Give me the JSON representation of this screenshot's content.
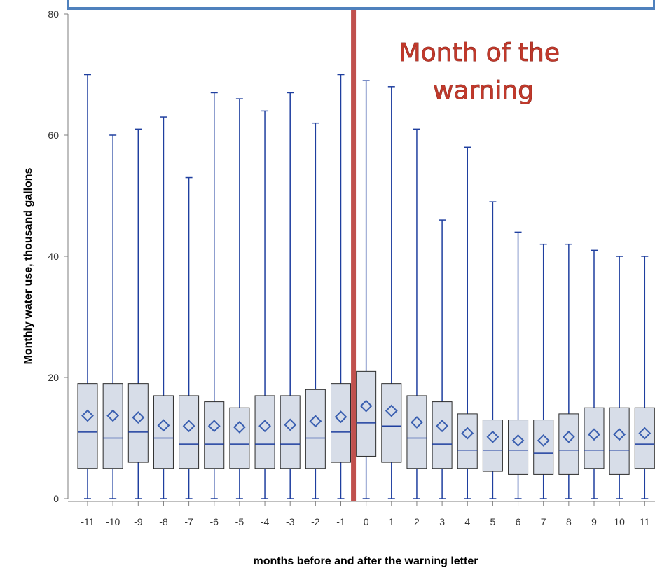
{
  "chart_data": {
    "type": "box",
    "title": "",
    "xlabel": "months before and after the warning letter",
    "ylabel": "Monthly water use, thousand gallons",
    "ylim": [
      0,
      80
    ],
    "yticks": [
      0,
      20,
      40,
      60,
      80
    ],
    "grid": false,
    "categories": [
      "-11",
      "-10",
      "-9",
      "-8",
      "-7",
      "-6",
      "-5",
      "-4",
      "-3",
      "-2",
      "-1",
      "0",
      "1",
      "2",
      "3",
      "4",
      "5",
      "6",
      "7",
      "8",
      "9",
      "10",
      "11"
    ],
    "boxes": [
      {
        "min": 0,
        "q1": 5,
        "median": 11,
        "q3": 19,
        "max": 70,
        "mean": 13.7
      },
      {
        "min": 0,
        "q1": 5,
        "median": 10,
        "q3": 19,
        "max": 60,
        "mean": 13.7
      },
      {
        "min": 0,
        "q1": 6,
        "median": 11,
        "q3": 19,
        "max": 61,
        "mean": 13.4
      },
      {
        "min": 0,
        "q1": 5,
        "median": 10,
        "q3": 17,
        "max": 63,
        "mean": 12.1
      },
      {
        "min": 0,
        "q1": 5,
        "median": 9,
        "q3": 17,
        "max": 53,
        "mean": 12.0
      },
      {
        "min": 0,
        "q1": 5,
        "median": 9,
        "q3": 16,
        "max": 67,
        "mean": 12.0
      },
      {
        "min": 0,
        "q1": 5,
        "median": 9,
        "q3": 15,
        "max": 66,
        "mean": 11.8
      },
      {
        "min": 0,
        "q1": 5,
        "median": 9,
        "q3": 17,
        "max": 64,
        "mean": 12.0
      },
      {
        "min": 0,
        "q1": 5,
        "median": 9,
        "q3": 17,
        "max": 67,
        "mean": 12.2
      },
      {
        "min": 0,
        "q1": 5,
        "median": 10,
        "q3": 18,
        "max": 62,
        "mean": 12.8
      },
      {
        "min": 0,
        "q1": 6,
        "median": 11,
        "q3": 19,
        "max": 70,
        "mean": 13.5
      },
      {
        "min": 0,
        "q1": 7,
        "median": 12.5,
        "q3": 21,
        "max": 69,
        "mean": 15.3
      },
      {
        "min": 0,
        "q1": 6,
        "median": 12,
        "q3": 19,
        "max": 68,
        "mean": 14.5
      },
      {
        "min": 0,
        "q1": 5,
        "median": 10,
        "q3": 17,
        "max": 61,
        "mean": 12.6
      },
      {
        "min": 0,
        "q1": 5,
        "median": 9,
        "q3": 16,
        "max": 46,
        "mean": 12.0
      },
      {
        "min": 0,
        "q1": 5,
        "median": 8,
        "q3": 14,
        "max": 58,
        "mean": 10.8
      },
      {
        "min": 0,
        "q1": 4.5,
        "median": 8,
        "q3": 13,
        "max": 49,
        "mean": 10.2
      },
      {
        "min": 0,
        "q1": 4,
        "median": 8,
        "q3": 13,
        "max": 44,
        "mean": 9.6
      },
      {
        "min": 0,
        "q1": 4,
        "median": 7.5,
        "q3": 13,
        "max": 42,
        "mean": 9.6
      },
      {
        "min": 0,
        "q1": 4,
        "median": 8,
        "q3": 14,
        "max": 42,
        "mean": 10.2
      },
      {
        "min": 0,
        "q1": 5,
        "median": 8,
        "q3": 15,
        "max": 41,
        "mean": 10.6
      },
      {
        "min": 0,
        "q1": 4,
        "median": 8,
        "q3": 15,
        "max": 40,
        "mean": 10.6
      },
      {
        "min": 0,
        "q1": 5,
        "median": 9,
        "q3": 15,
        "max": 40,
        "mean": 10.8
      }
    ],
    "reference_line": {
      "category": "0",
      "color": "#c0504d"
    },
    "annotation": {
      "lines": [
        "Month of the",
        "warning"
      ],
      "color": "#c0392b"
    },
    "colors": {
      "box_fill": "#d7dde8",
      "box_stroke": "#2b2b2b",
      "whisker": "#1f3f9f",
      "mean_marker": "#3a5fb0",
      "frame": "#4f81bd"
    }
  }
}
